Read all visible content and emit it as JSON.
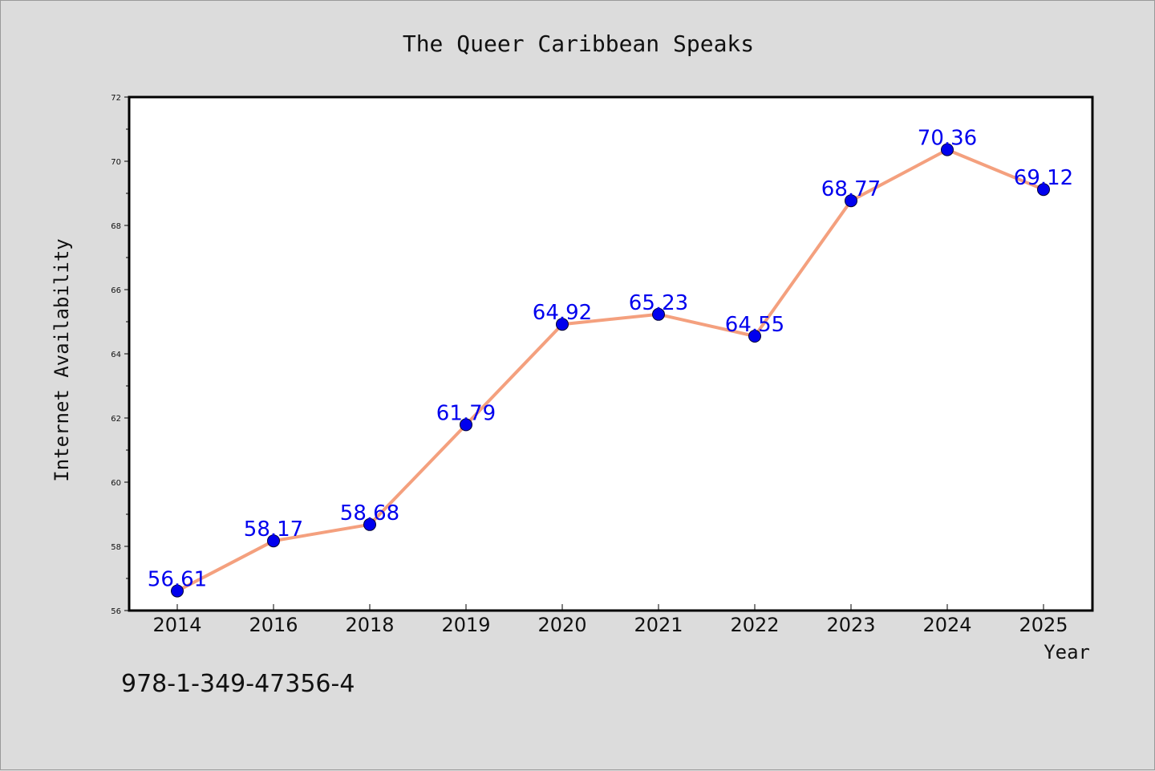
{
  "chart_data": {
    "type": "line",
    "title": "The Queer Caribbean Speaks",
    "xlabel": "Year",
    "ylabel": "Internet Availability",
    "categories": [
      "2014",
      "2016",
      "2018",
      "2019",
      "2020",
      "2021",
      "2022",
      "2023",
      "2024",
      "2025"
    ],
    "values": [
      56.61,
      58.17,
      58.68,
      61.79,
      64.92,
      65.23,
      64.55,
      68.77,
      70.36,
      69.12
    ],
    "data_labels": [
      "56.61",
      "58.17",
      "58.68",
      "61.79",
      "64.92",
      "65.23",
      "64.55",
      "68.77",
      "70.36",
      "69.12"
    ],
    "ylim": [
      56,
      72
    ],
    "yticks": [
      56,
      58,
      60,
      62,
      64,
      66,
      68,
      70,
      72
    ],
    "ytick_labels": [
      "56",
      "58",
      "60",
      "62",
      "64",
      "66",
      "68",
      "70",
      "72"
    ],
    "grid": false,
    "legend": "none",
    "colors": {
      "line": "#f4a07e",
      "marker": "#0000ee",
      "data_label": "#0000ee",
      "background": "#dcdcdc",
      "plot_background": "#ffffff"
    }
  },
  "footer": {
    "isbn": "978-1-349-47356-4"
  }
}
